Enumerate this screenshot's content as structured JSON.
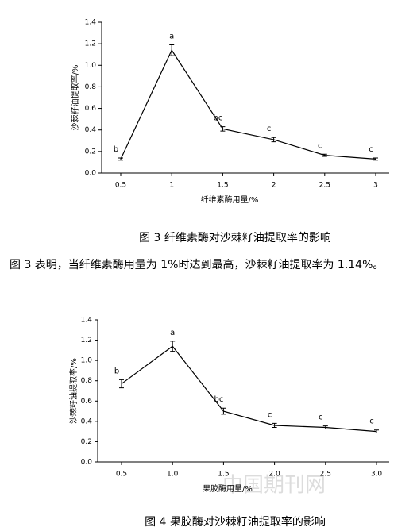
{
  "chart_data": [
    {
      "type": "line",
      "categories": [
        "0.5",
        "1",
        "1.5",
        "2",
        "2.5",
        "3"
      ],
      "series": [
        {
          "color": "#000000",
          "values": [
            0.13,
            1.14,
            0.41,
            0.31,
            0.165,
            0.13
          ],
          "errors": [
            0.01,
            0.05,
            0.02,
            0.02,
            0.01,
            0.01
          ],
          "letters": [
            "b",
            "a",
            "bc",
            "c",
            "c",
            "c"
          ]
        }
      ],
      "ylim": [
        0,
        1.4
      ],
      "yticks": [
        {
          "value": 0,
          "label": "0.0"
        },
        0.2,
        0.4,
        0.6,
        0.8,
        {
          "value": 1,
          "label": "1.0"
        },
        1.2,
        1.4
      ],
      "ylabel": "沙棘籽油提取率/%",
      "xlabel": "纤维素酶用量/%"
    },
    {
      "type": "line",
      "categories": [
        "0.5",
        "1.0",
        "1.5",
        "2.0",
        "2.5",
        "3.0"
      ],
      "series": [
        {
          "color": "#000000",
          "values": [
            0.77,
            1.14,
            0.5,
            0.36,
            0.34,
            0.3
          ],
          "errors": [
            0.04,
            0.05,
            0.03,
            0.02,
            0.015,
            0.015
          ],
          "letters": [
            "b",
            "a",
            "bc",
            "c",
            "c",
            "c"
          ]
        }
      ],
      "ylim": [
        0,
        1.4
      ],
      "yticks": [
        {
          "value": 0,
          "label": "0.0"
        },
        0.2,
        0.4,
        0.6,
        0.8,
        {
          "value": 1,
          "label": "1.0"
        },
        1.2,
        1.4
      ],
      "ylabel": "沙棘籽油提取率/%",
      "xlabel": "果胶酶用量/%"
    }
  ],
  "captions": [
    "图 3 纤维素酶对沙棘籽油提取率的影响",
    "图 4 果胶酶对沙棘籽油提取率的影响"
  ],
  "paragraph": "图 3 表明，当纤维素酶用量为 1%时达到最高，沙棘籽油提取率为 1.14%。",
  "watermark": "中国期刊网"
}
